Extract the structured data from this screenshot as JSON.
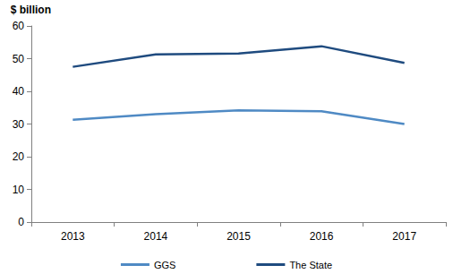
{
  "chart_data": {
    "type": "line",
    "ylabel": "$ billion",
    "categories": [
      "2013",
      "2014",
      "2015",
      "2016",
      "2017"
    ],
    "series": [
      {
        "name": "GGS",
        "color": "#4f8ac4",
        "values": [
          31.3,
          33.0,
          34.2,
          33.9,
          30.0
        ]
      },
      {
        "name": "The State",
        "color": "#1f4b7f",
        "values": [
          47.5,
          51.3,
          51.6,
          53.8,
          48.7
        ]
      }
    ],
    "ylim": [
      0,
      60
    ],
    "yticks": [
      0,
      10,
      20,
      30,
      40,
      50,
      60
    ],
    "grid": false,
    "legend": "bottom"
  }
}
